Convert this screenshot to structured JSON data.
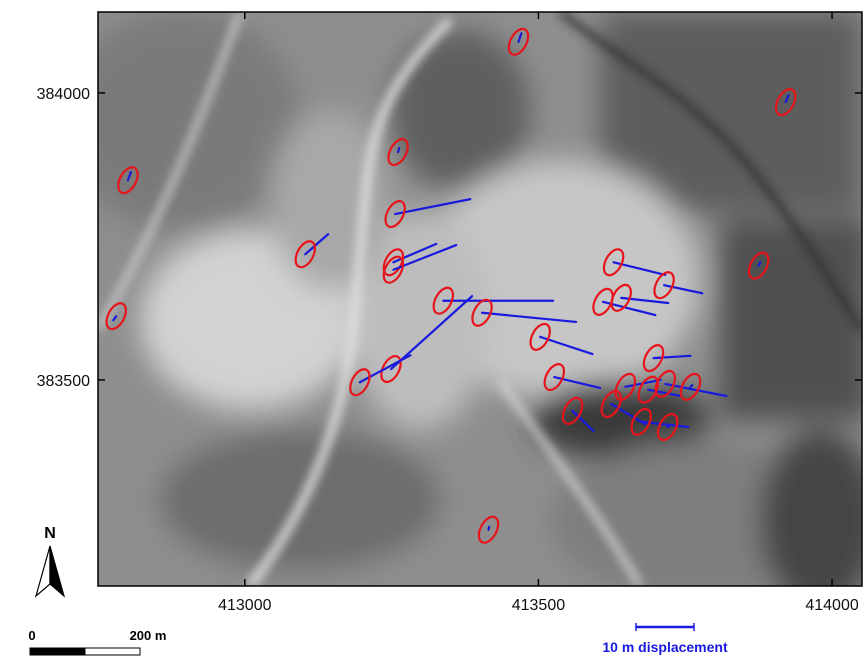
{
  "map": {
    "xlim": [
      412750,
      414051
    ],
    "ylim": [
      383141,
      384141
    ],
    "xticks": [
      413000,
      413500,
      414000
    ],
    "yticks": [
      383500,
      384000
    ],
    "north": "N",
    "scale_bar": {
      "start": "0",
      "end": "200 m"
    },
    "legend": "10 m displacement",
    "ellipse_color": "#e8141c",
    "vector_color": "#1a1adf",
    "features": [
      {
        "x": 413466,
        "y": 384089,
        "ex": 413471,
        "ey": 384104
      },
      {
        "x": 413921,
        "y": 383984,
        "ex": 413926,
        "ey": 383996
      },
      {
        "x": 412801,
        "y": 383848,
        "ex": 412806,
        "ey": 383862
      },
      {
        "x": 413261,
        "y": 383897,
        "ex": 413263,
        "ey": 383904
      },
      {
        "x": 412781,
        "y": 383611,
        "ex": 412776,
        "ey": 383604
      },
      {
        "x": 413256,
        "y": 383789,
        "ex": 413384,
        "ey": 383815
      },
      {
        "x": 413103,
        "y": 383719,
        "ex": 413142,
        "ey": 383754
      },
      {
        "x": 413253,
        "y": 383705,
        "ex": 413326,
        "ey": 383737
      },
      {
        "x": 413253,
        "y": 383692,
        "ex": 413360,
        "ey": 383735
      },
      {
        "x": 413338,
        "y": 383638,
        "ex": 413525,
        "ey": 383638
      },
      {
        "x": 413404,
        "y": 383617,
        "ex": 413564,
        "ey": 383601
      },
      {
        "x": 413503,
        "y": 383575,
        "ex": 413592,
        "ey": 383545
      },
      {
        "x": 413249,
        "y": 383519,
        "ex": 413387,
        "ey": 383646
      },
      {
        "x": 413196,
        "y": 383496,
        "ex": 413282,
        "ey": 383543
      },
      {
        "x": 413628,
        "y": 383705,
        "ex": 413716,
        "ey": 383683
      },
      {
        "x": 413714,
        "y": 383665,
        "ex": 413779,
        "ey": 383651
      },
      {
        "x": 413610,
        "y": 383636,
        "ex": 413699,
        "ey": 383613
      },
      {
        "x": 413641,
        "y": 383643,
        "ex": 413721,
        "ey": 383634
      },
      {
        "x": 413875,
        "y": 383699,
        "ex": 413878,
        "ey": 383705
      },
      {
        "x": 413696,
        "y": 383538,
        "ex": 413759,
        "ey": 383542
      },
      {
        "x": 413527,
        "y": 383505,
        "ex": 413605,
        "ey": 383486
      },
      {
        "x": 413648,
        "y": 383488,
        "ex": 413708,
        "ey": 383500
      },
      {
        "x": 413687,
        "y": 383483,
        "ex": 413742,
        "ey": 383472
      },
      {
        "x": 413716,
        "y": 383493,
        "ex": 413820,
        "ey": 383472
      },
      {
        "x": 413759,
        "y": 383488,
        "ex": 413762,
        "ey": 383491
      },
      {
        "x": 413558,
        "y": 383446,
        "ex": 413594,
        "ey": 383411
      },
      {
        "x": 413624,
        "y": 383458,
        "ex": 413682,
        "ey": 383423
      },
      {
        "x": 413675,
        "y": 383427,
        "ex": 413755,
        "ey": 383418
      },
      {
        "x": 413720,
        "y": 383418,
        "ex": 413724,
        "ey": 383422
      },
      {
        "x": 413415,
        "y": 383239,
        "ex": 413416,
        "ey": 383244
      }
    ]
  }
}
